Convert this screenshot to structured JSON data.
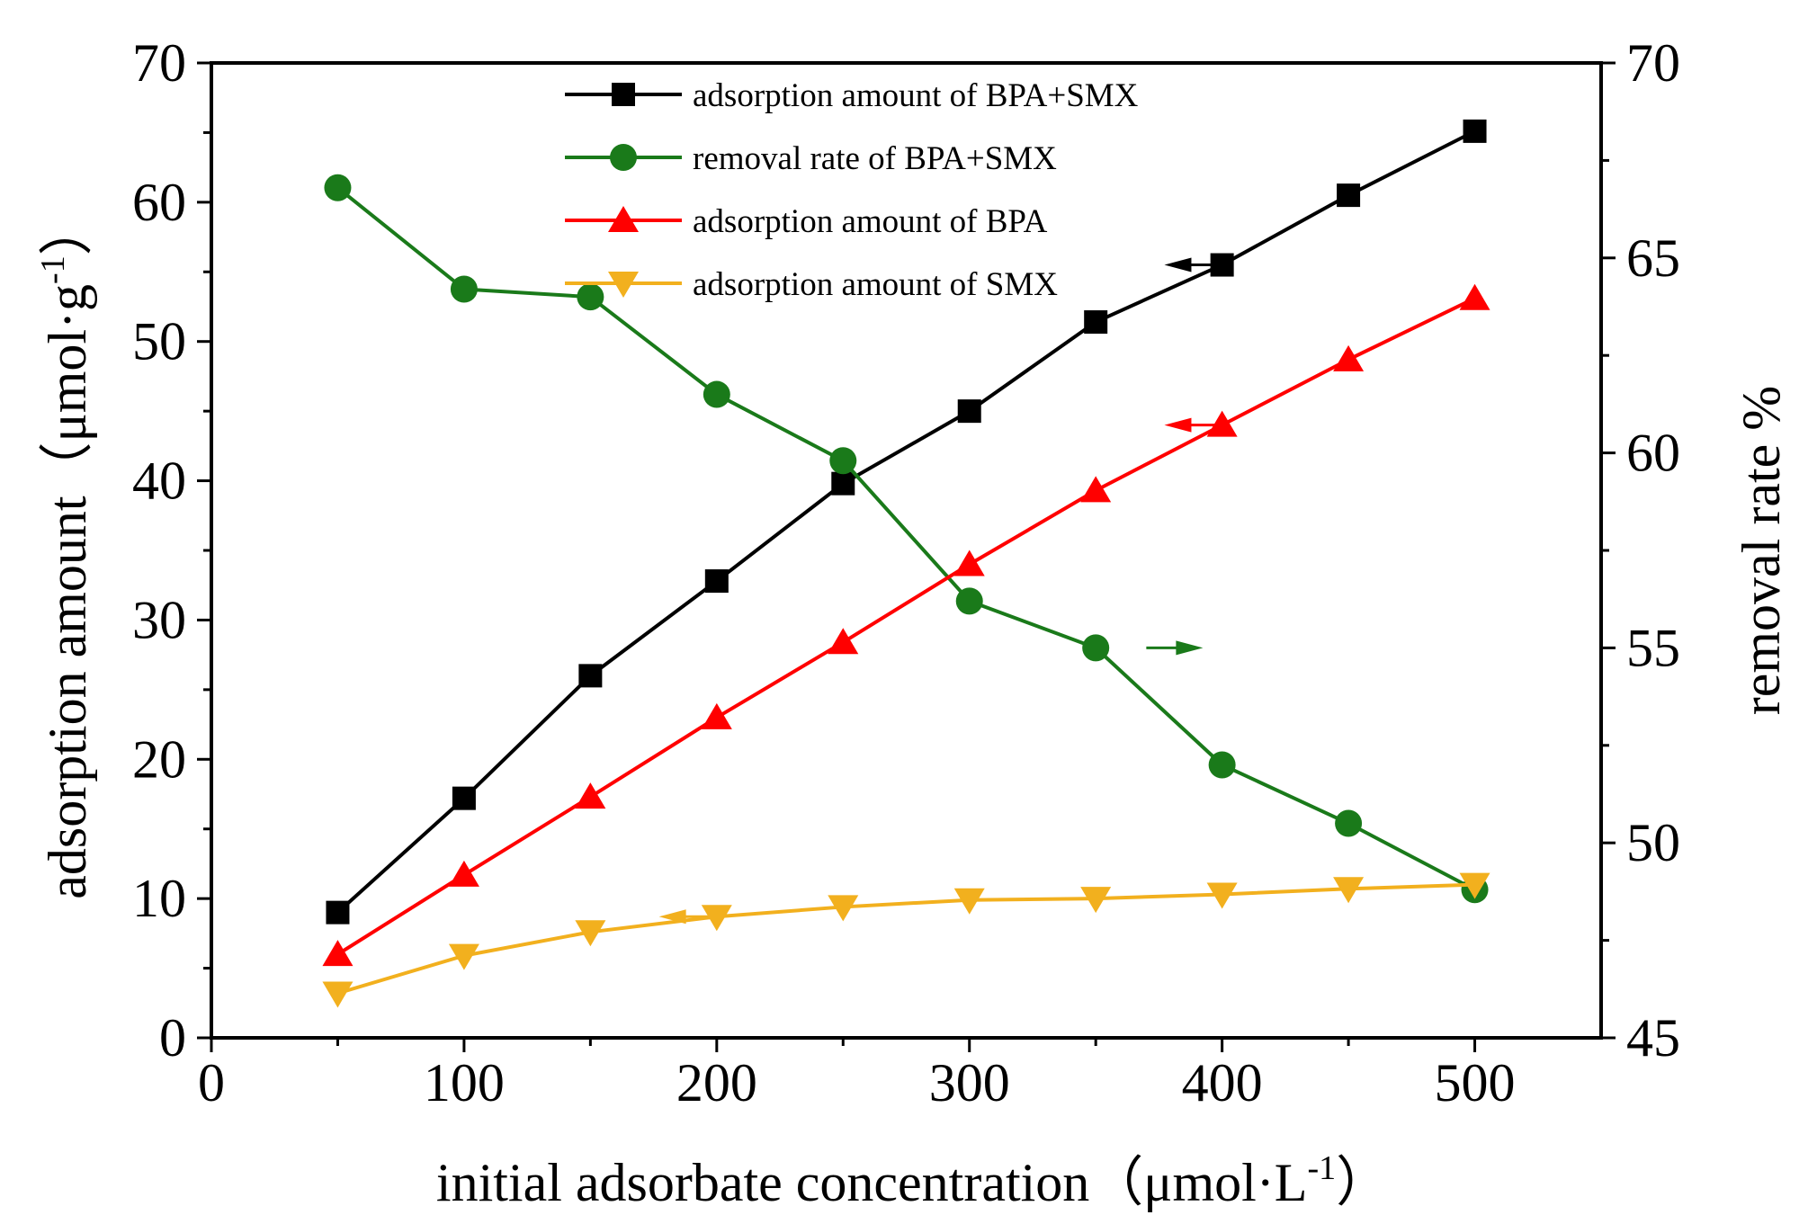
{
  "chart_data": {
    "type": "line",
    "x_axis": {
      "label": "initial adsorbate concentration（μmol·L",
      "label_sup": "-1",
      "label_close": "）",
      "range": [
        0,
        550
      ],
      "ticks": [
        0,
        100,
        200,
        300,
        400,
        500
      ],
      "tick_labels": [
        "0",
        "100",
        "200",
        "300",
        "400",
        "500"
      ]
    },
    "y_axis_left": {
      "label": "adsorption amount（μmol·g",
      "label_sup": "-1",
      "label_close": "）",
      "range": [
        0,
        70
      ],
      "ticks": [
        0,
        10,
        20,
        30,
        40,
        50,
        60,
        70
      ],
      "tick_labels": [
        "0",
        "10",
        "20",
        "30",
        "40",
        "50",
        "60",
        "70"
      ]
    },
    "y_axis_right": {
      "label": "removal rate %",
      "range": [
        45,
        70
      ],
      "ticks": [
        45,
        50,
        55,
        60,
        65,
        70
      ],
      "tick_labels": [
        "45",
        "50",
        "55",
        "60",
        "65",
        "70"
      ]
    },
    "x": [
      50,
      100,
      150,
      200,
      250,
      300,
      350,
      400,
      450,
      500
    ],
    "series": [
      {
        "name": "adsorption amount of BPA+SMX",
        "axis": "left",
        "color": "#000000",
        "marker": "square",
        "values": [
          9.0,
          17.2,
          26.0,
          32.8,
          39.8,
          45.0,
          51.4,
          55.5,
          60.5,
          65.1
        ],
        "arrow": {
          "direction": "left",
          "x": 380,
          "y": 55.5
        }
      },
      {
        "name": "removal rate of BPA+SMX",
        "axis": "right",
        "color": "#1a7a1a",
        "marker": "circle",
        "values": [
          66.8,
          64.2,
          64.0,
          61.5,
          59.8,
          56.2,
          55.0,
          52.0,
          50.5,
          48.8
        ],
        "arrow": {
          "direction": "right",
          "x": 370,
          "y": 55.0
        }
      },
      {
        "name": "adsorption amount of BPA",
        "axis": "left",
        "color": "#ff0000",
        "marker": "triangle-up",
        "values": [
          6.0,
          11.7,
          17.3,
          23.0,
          28.4,
          34.0,
          39.3,
          44.0,
          48.7,
          53.1
        ],
        "arrow": {
          "direction": "left",
          "x": 380,
          "y": 44.0
        }
      },
      {
        "name": "adsorption amount of SMX",
        "axis": "left",
        "color": "#f2b01e",
        "marker": "triangle-down",
        "values": [
          3.2,
          5.9,
          7.6,
          8.7,
          9.4,
          9.9,
          10.0,
          10.3,
          10.7,
          11.0
        ],
        "arrow": {
          "direction": "left",
          "x": 180,
          "y": 8.7
        }
      }
    ]
  }
}
